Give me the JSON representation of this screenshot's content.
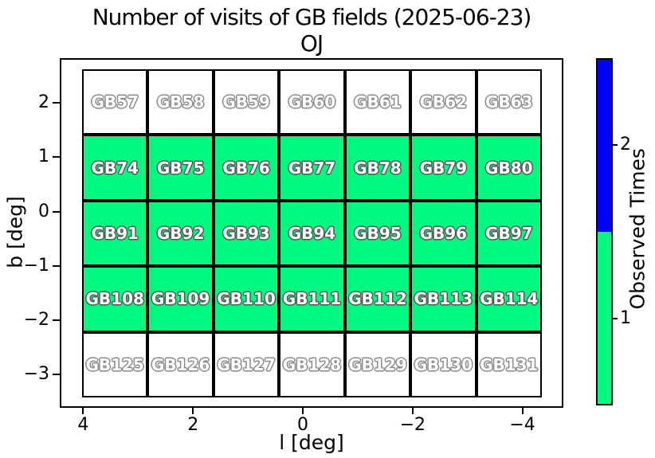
{
  "title": {
    "line1": "Number of visits of GB fields (2025-06-23)",
    "line2": "OJ"
  },
  "chart_data": {
    "type": "heatmap",
    "title": "Number of visits of GB fields (2025-06-23)",
    "subtitle": "OJ",
    "xlabel": "l [deg]",
    "ylabel": "b [deg]",
    "xlim": [
      4.4,
      -4.7
    ],
    "ylim": [
      -3.4,
      2.6
    ],
    "x_axis_reversed": true,
    "x_ticks": [
      {
        "label": "4",
        "value": 4
      },
      {
        "label": "2",
        "value": 2
      },
      {
        "label": "0",
        "value": 0
      },
      {
        "label": "−2",
        "value": -2
      },
      {
        "label": "−4",
        "value": -4
      }
    ],
    "y_ticks": [
      {
        "label": "2",
        "value": 2
      },
      {
        "label": "1",
        "value": 1
      },
      {
        "label": "0",
        "value": 0
      },
      {
        "label": "−1",
        "value": -1
      },
      {
        "label": "−2",
        "value": -2
      },
      {
        "label": "−3",
        "value": -3
      }
    ],
    "column_l_centers_deg_approx": [
      3.4,
      2.2,
      1.1,
      -0.1,
      -1.3,
      -2.5,
      -3.7
    ],
    "rows": [
      {
        "b_center_deg_approx": 2.0,
        "fields": [
          "GB57",
          "GB58",
          "GB59",
          "GB60",
          "GB61",
          "GB62",
          "GB63"
        ],
        "visits": [
          0,
          0,
          0,
          0,
          0,
          0,
          0
        ]
      },
      {
        "b_center_deg_approx": 0.8,
        "fields": [
          "GB74",
          "GB75",
          "GB76",
          "GB77",
          "GB78",
          "GB79",
          "GB80"
        ],
        "visits": [
          1,
          1,
          1,
          1,
          1,
          1,
          1
        ]
      },
      {
        "b_center_deg_approx": -0.4,
        "fields": [
          "GB91",
          "GB92",
          "GB93",
          "GB94",
          "GB95",
          "GB96",
          "GB97"
        ],
        "visits": [
          1,
          1,
          1,
          1,
          1,
          1,
          1
        ]
      },
      {
        "b_center_deg_approx": -1.6,
        "fields": [
          "GB108",
          "GB109",
          "GB110",
          "GB111",
          "GB112",
          "GB113",
          "GB114"
        ],
        "visits": [
          1,
          1,
          1,
          1,
          1,
          1,
          1
        ]
      },
      {
        "b_center_deg_approx": -2.9,
        "fields": [
          "GB125",
          "GB126",
          "GB127",
          "GB128",
          "GB129",
          "GB130",
          "GB131"
        ],
        "visits": [
          0,
          0,
          0,
          0,
          0,
          0,
          0
        ]
      }
    ],
    "visit_colors": {
      "0": "#FFFFFF",
      "1": "#00FA80",
      "2": "#0000FF"
    },
    "colorbar": {
      "label": "Observed Times",
      "segments_top_to_bottom": [
        {
          "value": 2,
          "label": "2",
          "color": "#0000FF"
        },
        {
          "value": 1,
          "label": "1",
          "color": "#00FA80"
        }
      ],
      "legend_position": "right"
    },
    "grid_on": false
  }
}
